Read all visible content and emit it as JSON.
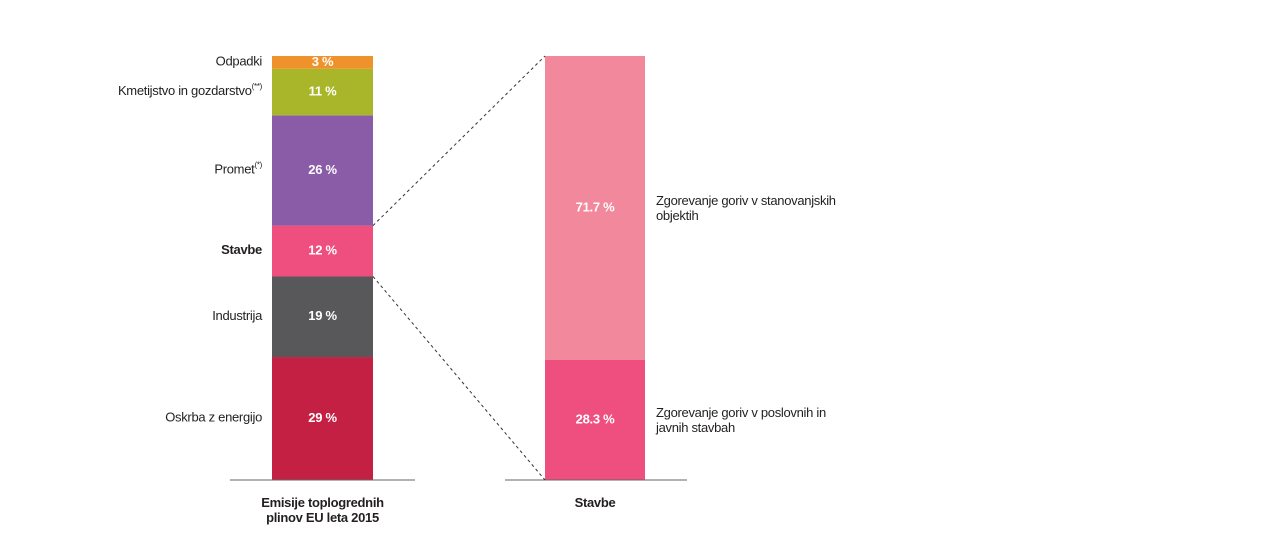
{
  "chart_data": [
    {
      "type": "bar",
      "stacked": true,
      "categories": [
        "Emisije toplogrednih plinov EU leta 2015"
      ],
      "ylim": [
        0,
        100
      ],
      "legend": "left",
      "series": [
        {
          "name": "Oskrba z energijo",
          "color": "#c42043",
          "values": [
            29
          ],
          "value_labels": [
            "29 %"
          ]
        },
        {
          "name": "Industrija",
          "color": "#58585a",
          "values": [
            19
          ],
          "value_labels": [
            "19 %"
          ]
        },
        {
          "name": "Stavbe",
          "color": "#ef4f7f",
          "values": [
            12
          ],
          "value_labels": [
            "12 %"
          ],
          "bold": true
        },
        {
          "name": "Promet",
          "note": "(*)",
          "color": "#8a5ca7",
          "values": [
            26
          ],
          "value_labels": [
            "26 %"
          ]
        },
        {
          "name": "Kmetijstvo in gozdarstvo",
          "note": "(**)",
          "color": "#a9b62a",
          "values": [
            11
          ],
          "value_labels": [
            "11 %"
          ]
        },
        {
          "name": "Odpadki",
          "color": "#f0922b",
          "values": [
            3
          ],
          "value_labels": [
            "3 %"
          ]
        }
      ]
    },
    {
      "type": "bar",
      "stacked": true,
      "categories": [
        "Stavbe"
      ],
      "ylim": [
        0,
        100
      ],
      "legend": "right",
      "series": [
        {
          "name": "Zgorevanje goriv v poslovnih in javnih stavbah",
          "color": "#ef4f7f",
          "values": [
            28.3
          ],
          "value_labels": [
            "28.3 %"
          ]
        },
        {
          "name": "Zgorevanje goriv v stanovanjskih objektih",
          "color": "#f2889c",
          "values": [
            71.7
          ],
          "value_labels": [
            "71.7 %"
          ]
        }
      ]
    }
  ]
}
